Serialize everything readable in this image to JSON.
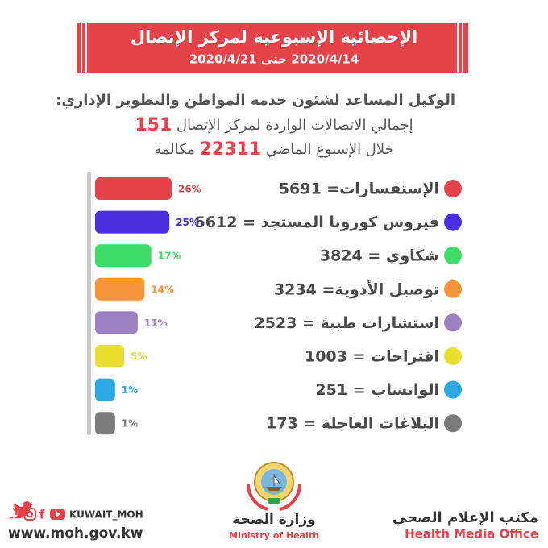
{
  "header": {
    "title": "الإحصائية الإسبوعية لمركز الإتصال",
    "dates": "2020/4/14 حتى 2020/4/21"
  },
  "intro": {
    "line1": "الوكيل المساعد لشئون خدمة المواطن والتطوير الإداري:",
    "line2": {
      "text": "إجمالي الاتصالات الواردة لمركز الإتصال",
      "number": "151"
    },
    "line3": {
      "before": "خلال الإسبوع الماضي",
      "number": "22311",
      "after": "مكالمة"
    }
  },
  "chart_data": {
    "type": "bar",
    "categories": [
      "الإستفسارات= 5691",
      "فيروس كورونا المستجد = 5612",
      "شكاوي = 3824",
      "توصيل الأدوية= 3234",
      "استشارات طبية = 2523",
      "اقتراحات = 1003",
      "الواتساب = 251",
      "البلاغات العاجلة = 173"
    ],
    "values": [
      26,
      25,
      17,
      14,
      11,
      5,
      1,
      1
    ],
    "value_labels": [
      "26%",
      "25%",
      "17%",
      "14%",
      "11%",
      "5%",
      "1%",
      "1%"
    ],
    "colors": [
      "#e4434a",
      "#4a2fe0",
      "#3fdc68",
      "#f7953a",
      "#9d80c2",
      "#e7df2b",
      "#2ba8e1",
      "#7b7b7b"
    ]
  },
  "footer": {
    "handle": "KUWAIT_MOH",
    "website": "www.moh.gov.kw",
    "ministry_ar": "وزارة الصحة",
    "ministry_en": "Ministry of Health",
    "office_ar": "مكتب الإعلام الصحي",
    "office_en": "Health Media Office"
  }
}
